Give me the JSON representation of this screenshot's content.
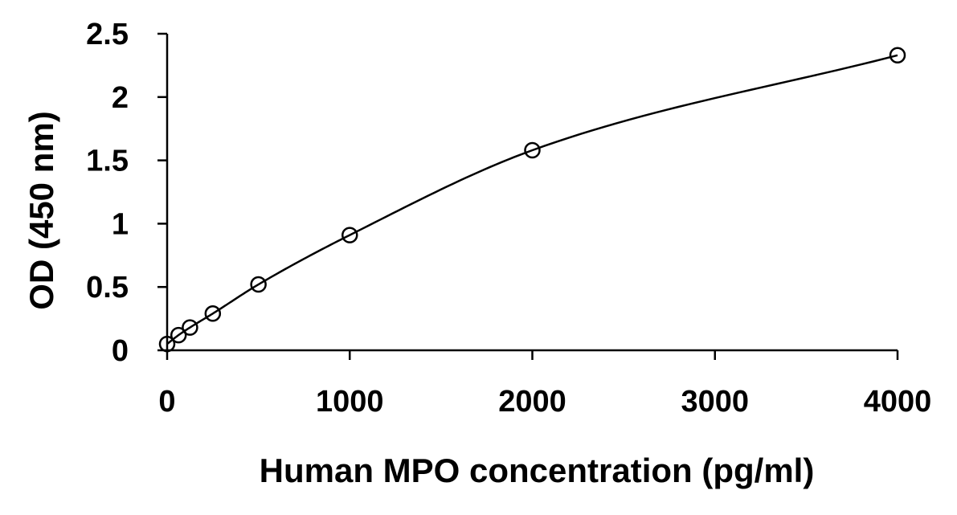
{
  "chart_data": {
    "type": "scatter",
    "xlabel": "Human MPO concentration (pg/ml)",
    "ylabel": "OD (450 nm)",
    "xlim": [
      0,
      4000
    ],
    "ylim": [
      0,
      2.5
    ],
    "x_ticks": [
      0,
      1000,
      2000,
      3000,
      4000
    ],
    "x_tick_labels": [
      "0",
      "1000",
      "2000",
      "3000",
      "4000"
    ],
    "y_ticks": [
      0,
      0.5,
      1,
      1.5,
      2,
      2.5
    ],
    "y_tick_labels": [
      "0",
      "0.5",
      "1",
      "1.5",
      "2",
      "2.5"
    ],
    "grid": false,
    "legend": "none",
    "series": [
      {
        "marker": "open-circle",
        "fit": "smooth curve",
        "x": [
          0,
          62.5,
          125,
          250,
          500,
          1000,
          2000,
          4000
        ],
        "y": [
          0.05,
          0.12,
          0.18,
          0.29,
          0.52,
          0.91,
          1.58,
          2.33
        ]
      }
    ]
  }
}
